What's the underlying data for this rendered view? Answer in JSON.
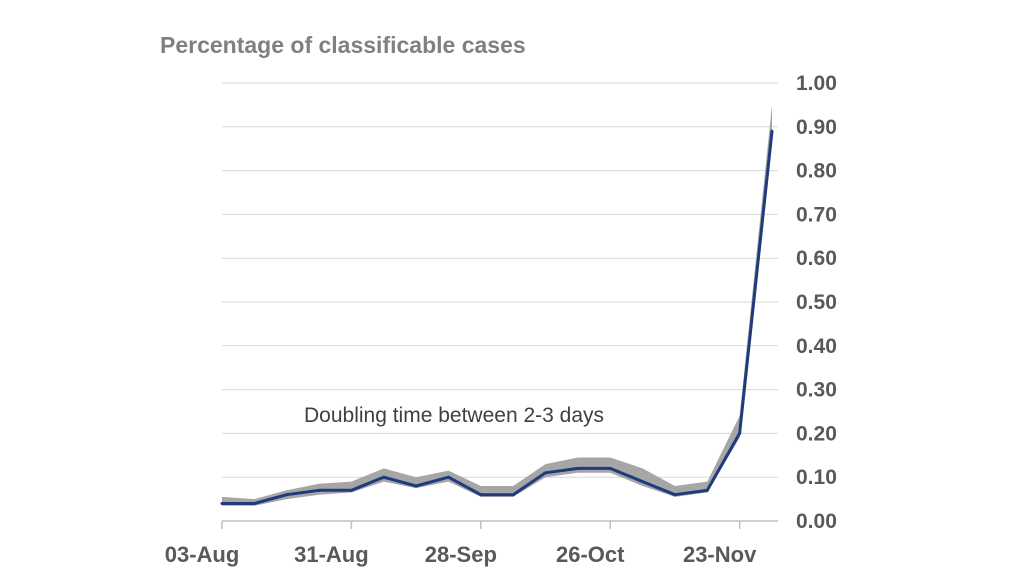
{
  "chart_data": {
    "type": "line",
    "title": "Percentage of classificable cases",
    "annotation": "Doubling time between 2-3 days",
    "xlabel": "",
    "ylabel": "",
    "ylim": [
      0,
      1.0
    ],
    "yticks": [
      "0.00",
      "0.10",
      "0.20",
      "0.30",
      "0.40",
      "0.50",
      "0.60",
      "0.70",
      "0.80",
      "0.90",
      "1.00"
    ],
    "xticks": [
      "03-Aug",
      "31-Aug",
      "28-Sep",
      "26-Oct",
      "23-Nov"
    ],
    "x": [
      "03-Aug",
      "10-Aug",
      "17-Aug",
      "24-Aug",
      "31-Aug",
      "07-Sep",
      "14-Sep",
      "21-Sep",
      "28-Sep",
      "05-Oct",
      "12-Oct",
      "19-Oct",
      "26-Oct",
      "02-Nov",
      "09-Nov",
      "16-Nov",
      "23-Nov",
      "30-Nov"
    ],
    "series": [
      {
        "values": [
          0.04,
          0.04,
          0.06,
          0.07,
          0.07,
          0.1,
          0.08,
          0.1,
          0.06,
          0.06,
          0.11,
          0.12,
          0.12,
          0.09,
          0.06,
          0.07,
          0.2,
          0.89
        ],
        "lower": [
          0.035,
          0.035,
          0.05,
          0.06,
          0.065,
          0.09,
          0.075,
          0.09,
          0.055,
          0.055,
          0.1,
          0.11,
          0.11,
          0.08,
          0.055,
          0.065,
          0.19,
          0.86
        ],
        "upper": [
          0.055,
          0.05,
          0.07,
          0.085,
          0.09,
          0.12,
          0.1,
          0.115,
          0.08,
          0.08,
          0.13,
          0.145,
          0.145,
          0.12,
          0.08,
          0.09,
          0.24,
          0.95
        ]
      }
    ],
    "grid": true,
    "colors": {
      "line": "#1f3a7d",
      "band": "#a6a6a6",
      "grid": "#d9d9d9",
      "axis": "#bfbfbf"
    }
  }
}
